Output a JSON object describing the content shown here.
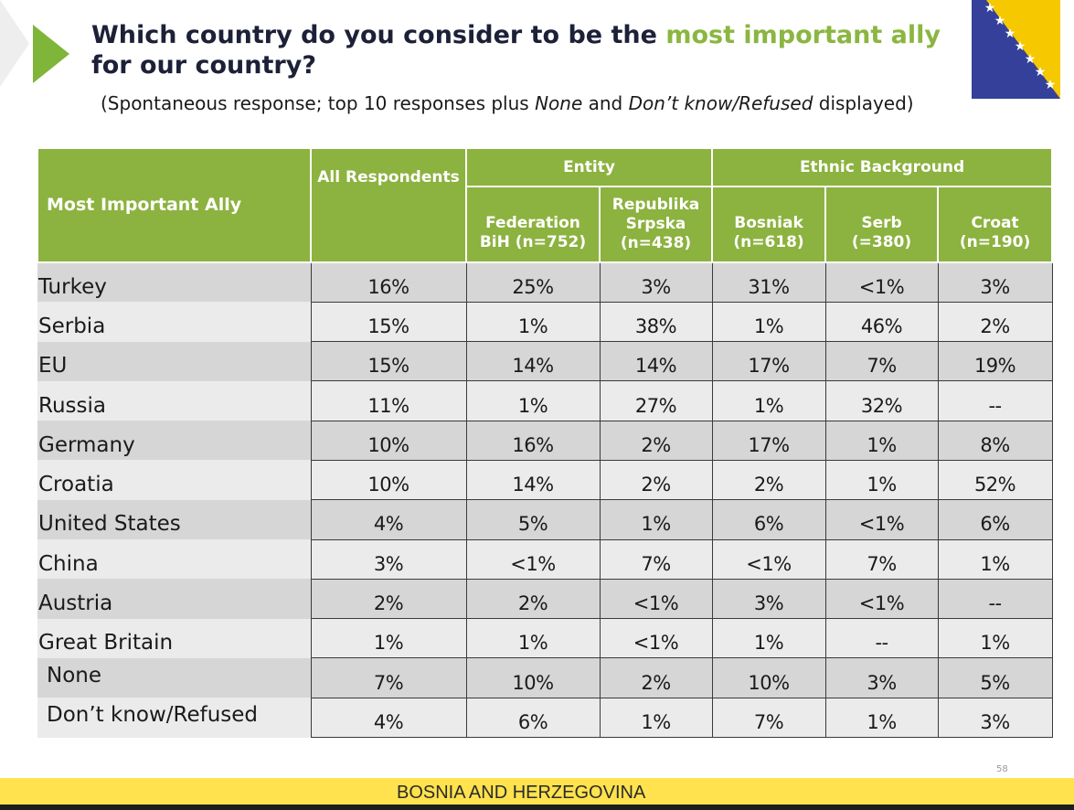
{
  "title": {
    "part1": "Which country do you consider to be the ",
    "highlight": "most important ally",
    "part2": " for our country?"
  },
  "subtitle": {
    "a": "(Spontaneous response; top 10 responses plus ",
    "b": "None",
    "c": " and ",
    "d": "Don’t know/Refused",
    "e": " displayed)"
  },
  "table": {
    "col_main": "Most Important Ally",
    "col_all": "All Respondents",
    "group_entity": "Entity",
    "group_ethnic": "Ethnic Background",
    "sub_cols": [
      "Federation BiH (n=752)",
      "Republika Srpska (n=438)",
      "Bosniak (n=618)",
      "Serb (=380)",
      "Croat (n=190)"
    ],
    "rows": [
      {
        "label": "Turkey",
        "values": [
          "16%",
          "25%",
          "3%",
          "31%",
          "<1%",
          "3%"
        ]
      },
      {
        "label": "Serbia",
        "values": [
          "15%",
          "1%",
          "38%",
          "1%",
          "46%",
          "2%"
        ]
      },
      {
        "label": "EU",
        "values": [
          "15%",
          "14%",
          "14%",
          "17%",
          "7%",
          "19%"
        ]
      },
      {
        "label": "Russia",
        "values": [
          "11%",
          "1%",
          "27%",
          "1%",
          "32%",
          "--"
        ]
      },
      {
        "label": "Germany",
        "values": [
          "10%",
          "16%",
          "2%",
          "17%",
          "1%",
          "8%"
        ]
      },
      {
        "label": "Croatia",
        "values": [
          "10%",
          "14%",
          "2%",
          "2%",
          "1%",
          "52%"
        ]
      },
      {
        "label": "United States",
        "values": [
          "4%",
          "5%",
          "1%",
          "6%",
          "<1%",
          "6%"
        ]
      },
      {
        "label": "China",
        "values": [
          "3%",
          "<1%",
          "7%",
          "<1%",
          "7%",
          "1%"
        ]
      },
      {
        "label": "Austria",
        "values": [
          "2%",
          "2%",
          "<1%",
          "3%",
          "<1%",
          "--"
        ]
      },
      {
        "label": "Great Britain",
        "values": [
          "1%",
          "1%",
          "<1%",
          "1%",
          "--",
          "1%"
        ]
      },
      {
        "label": "None",
        "values": [
          "7%",
          "10%",
          "2%",
          "10%",
          "3%",
          "5%"
        ]
      },
      {
        "label": "Don’t know/Refused",
        "values": [
          "4%",
          "6%",
          "1%",
          "7%",
          "1%",
          "3%"
        ]
      }
    ]
  },
  "page_number": "58",
  "footer": "BOSNIA AND HERZEGOVINA",
  "colors": {
    "accent_green": "#8cb23f",
    "title_navy": "#1c2138",
    "footer_yellow": "#ffe24d",
    "flag_blue": "#34409a",
    "flag_yellow": "#f6c800"
  }
}
